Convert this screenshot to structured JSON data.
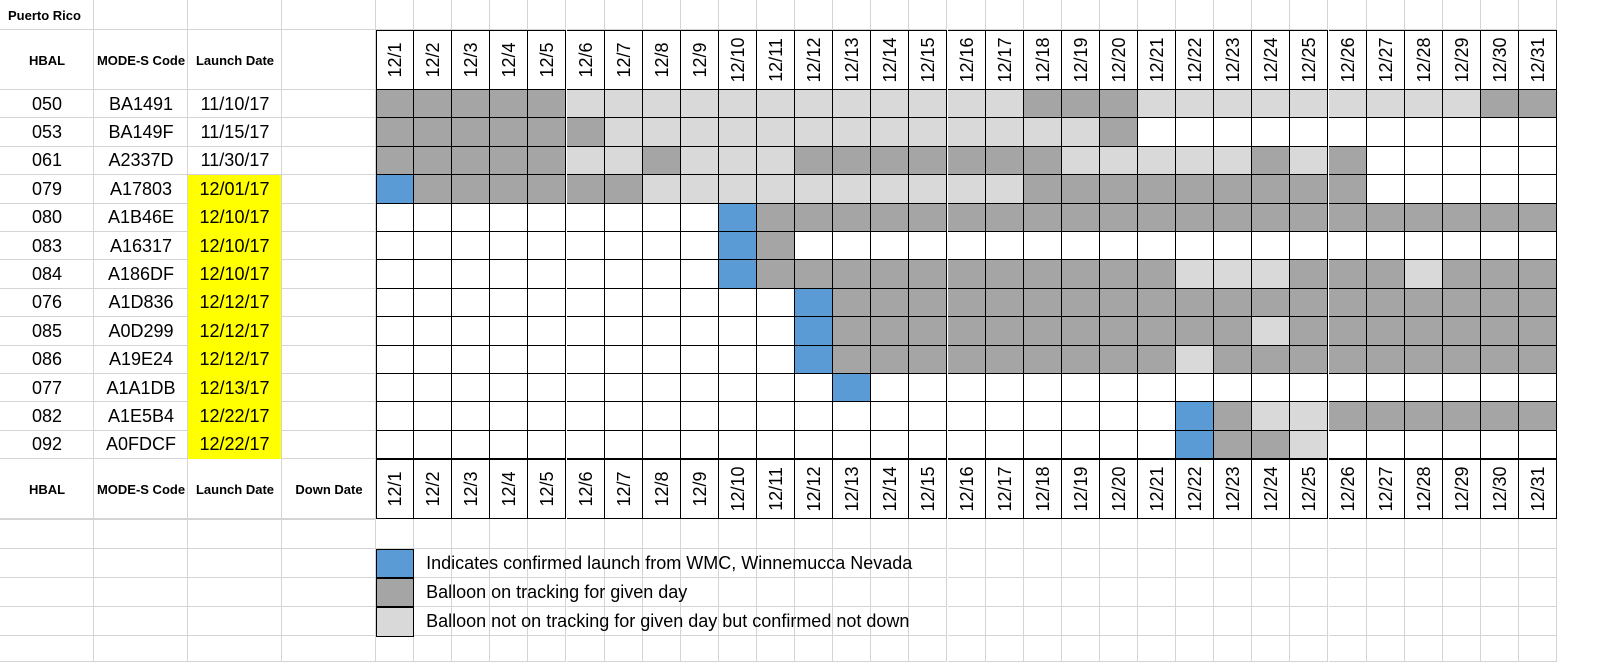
{
  "sheet_title": "Puerto Rico",
  "headers": {
    "hbal": "HBAL",
    "mode_s": "MODE-S Code",
    "launch_date": "Launch Date",
    "down_date": "Down Date"
  },
  "dates": [
    "12/1",
    "12/2",
    "12/3",
    "12/4",
    "12/5",
    "12/6",
    "12/7",
    "12/8",
    "12/9",
    "12/10",
    "12/11",
    "12/12",
    "12/13",
    "12/14",
    "12/15",
    "12/16",
    "12/17",
    "12/18",
    "12/19",
    "12/20",
    "12/21",
    "12/22",
    "12/23",
    "12/24",
    "12/25",
    "12/26",
    "12/27",
    "12/28",
    "12/29",
    "12/30",
    "12/31"
  ],
  "status_key": {
    ".": "empty",
    "B": "confirmed-launch",
    "D": "on-tracking",
    "L": "not-on-tracking-not-down"
  },
  "rows": [
    {
      "hbal": "050",
      "mode_s": "BA1491",
      "launch": "11/10/17",
      "launch_highlight": false,
      "status": "DDDDDLLLLLLLLLLLLDDDLLLLLLLLLDD"
    },
    {
      "hbal": "053",
      "mode_s": "BA149F",
      "launch": "11/15/17",
      "launch_highlight": false,
      "status": "DDDDDDLLLLLLLLLLLLLD..........."
    },
    {
      "hbal": "061",
      "mode_s": "A2337D",
      "launch": "11/30/17",
      "launch_highlight": false,
      "status": "DDDDDLLDLLLDDDDDDDLLLLLDLD....."
    },
    {
      "hbal": "079",
      "mode_s": "A17803",
      "launch": "12/01/17",
      "launch_highlight": true,
      "status": "BDDDDDDLLLLLLLLLLDDDDDDDDD....."
    },
    {
      "hbal": "080",
      "mode_s": "A1B46E",
      "launch": "12/10/17",
      "launch_highlight": true,
      "status": ".........BDDDDDDDDDDDDDDDDDDDDD"
    },
    {
      "hbal": "083",
      "mode_s": "A16317",
      "launch": "12/10/17",
      "launch_highlight": true,
      "status": ".........BD...................."
    },
    {
      "hbal": "084",
      "mode_s": "A186DF",
      "launch": "12/10/17",
      "launch_highlight": true,
      "status": ".........BDDDDDDDDDDDLLLDDDLDDD"
    },
    {
      "hbal": "076",
      "mode_s": "A1D836",
      "launch": "12/12/17",
      "launch_highlight": true,
      "status": "...........BDDDDDDDDDDDDDDDDDDD"
    },
    {
      "hbal": "085",
      "mode_s": "A0D299",
      "launch": "12/12/17",
      "launch_highlight": true,
      "status": "...........BDDDDDDDDDDDLDDDDDDD"
    },
    {
      "hbal": "086",
      "mode_s": "A19E24",
      "launch": "12/12/17",
      "launch_highlight": true,
      "status": "...........BDDDDDDDDDLDDDDDDDDD"
    },
    {
      "hbal": "077",
      "mode_s": "A1A1DB",
      "launch": "12/13/17",
      "launch_highlight": true,
      "status": "............B.................."
    },
    {
      "hbal": "082",
      "mode_s": "A1E5B4",
      "launch": "12/22/17",
      "launch_highlight": true,
      "status": ".....................BDLLDDDDDD"
    },
    {
      "hbal": "092",
      "mode_s": "A0FDCF",
      "launch": "12/22/17",
      "launch_highlight": true,
      "status": ".....................BDDL......"
    }
  ],
  "legend": [
    {
      "status": "confirmed-launch",
      "label": "Indicates confirmed launch from WMC, Winnemucca Nevada"
    },
    {
      "status": "on-tracking",
      "label": "Balloon on tracking for given day"
    },
    {
      "status": "not-on-tracking-not-down",
      "label": "Balloon not on tracking for given day but confirmed not down"
    }
  ],
  "colors": {
    "confirmed-launch": "#5b9bd5",
    "on-tracking": "#a5a5a5",
    "not-on-tracking-not-down": "#d9d9d9",
    "launch_highlight": "#ffff00",
    "gridline": "#d4d4d4",
    "grid_border": "#000000"
  }
}
